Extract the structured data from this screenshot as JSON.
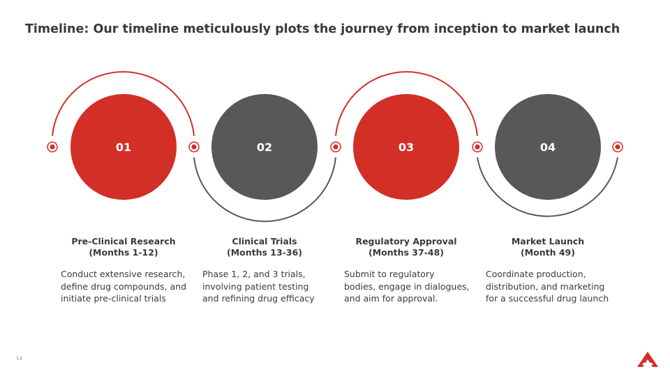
{
  "slide": {
    "title": "Timeline: Our timeline meticulously plots the journey from inception to market launch",
    "page_number": "14"
  },
  "colors": {
    "accent_red": "#d22f27",
    "dark_gray": "#58585a",
    "text": "#3a3a3a"
  },
  "steps": [
    {
      "number": "01",
      "title_line1": "Pre-Clinical Research",
      "title_line2": "(Months 1-12)",
      "desc": [
        "Conduct extensive research,",
        "define drug compounds, and",
        "initiate pre-clinical trials"
      ],
      "color": "#d22f27"
    },
    {
      "number": "02",
      "title_line1": "Clinical Trials",
      "title_line2": "(Months 13-36)",
      "desc": [
        "Phase 1, 2, and 3 trials,",
        "involving patient testing",
        "and refining drug efficacy"
      ],
      "color": "#58585a"
    },
    {
      "number": "03",
      "title_line1": "Regulatory Approval",
      "title_line2": "(Months 37-48)",
      "desc": [
        "Submit to regulatory",
        "bodies, engage in dialogues,",
        "and aim for approval."
      ],
      "color": "#d22f27"
    },
    {
      "number": "04",
      "title_line1": "Market Launch",
      "title_line2": "(Month 49)",
      "desc": [
        "Coordinate production,",
        "distribution, and marketing",
        "for a successful drug launch"
      ],
      "color": "#58585a"
    }
  ],
  "logo": {
    "icon": "brand-a-logo-icon"
  }
}
